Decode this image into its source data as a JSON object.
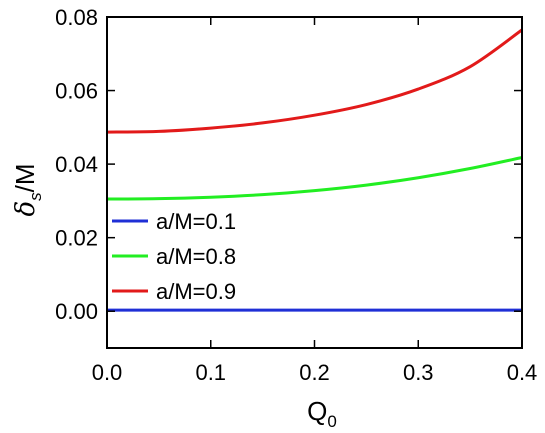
{
  "chart_data": {
    "type": "line",
    "xlabel": "Q",
    "xlabel_sub": "0",
    "ylabel": "δ",
    "ylabel_sub": "s",
    "ylabel_suffix": "/M",
    "xlim": [
      0.0,
      0.4
    ],
    "ylim": [
      -0.01,
      0.08
    ],
    "xticks": [
      0.0,
      0.1,
      0.2,
      0.3,
      0.4
    ],
    "xtick_labels": [
      "0.0",
      "0.1",
      "0.2",
      "0.3",
      "0.4"
    ],
    "yticks": [
      0.0,
      0.02,
      0.04,
      0.06,
      0.08
    ],
    "ytick_labels": [
      "0.00",
      "0.02",
      "0.04",
      "0.06",
      "0.08"
    ],
    "grid": false,
    "legend_position": "center-left",
    "series": [
      {
        "name": "a/M=0.1",
        "color": "#1f2fd6",
        "x": [
          0.0,
          0.05,
          0.1,
          0.15,
          0.2,
          0.25,
          0.3,
          0.35,
          0.4
        ],
        "values": [
          0.0003,
          0.0003,
          0.0003,
          0.0003,
          0.0003,
          0.0003,
          0.0003,
          0.0003,
          0.0003
        ]
      },
      {
        "name": "a/M=0.8",
        "color": "#22ee22",
        "x": [
          0.0,
          0.05,
          0.1,
          0.15,
          0.2,
          0.25,
          0.3,
          0.35,
          0.4
        ],
        "values": [
          0.0305,
          0.0306,
          0.031,
          0.0317,
          0.0328,
          0.0343,
          0.0363,
          0.0388,
          0.0418
        ]
      },
      {
        "name": "a/M=0.9",
        "color": "#e21a1a",
        "x": [
          0.0,
          0.05,
          0.1,
          0.15,
          0.2,
          0.25,
          0.3,
          0.35,
          0.4
        ],
        "values": [
          0.0487,
          0.0489,
          0.0498,
          0.0512,
          0.0533,
          0.0562,
          0.0604,
          0.0665,
          0.0765
        ]
      }
    ]
  }
}
